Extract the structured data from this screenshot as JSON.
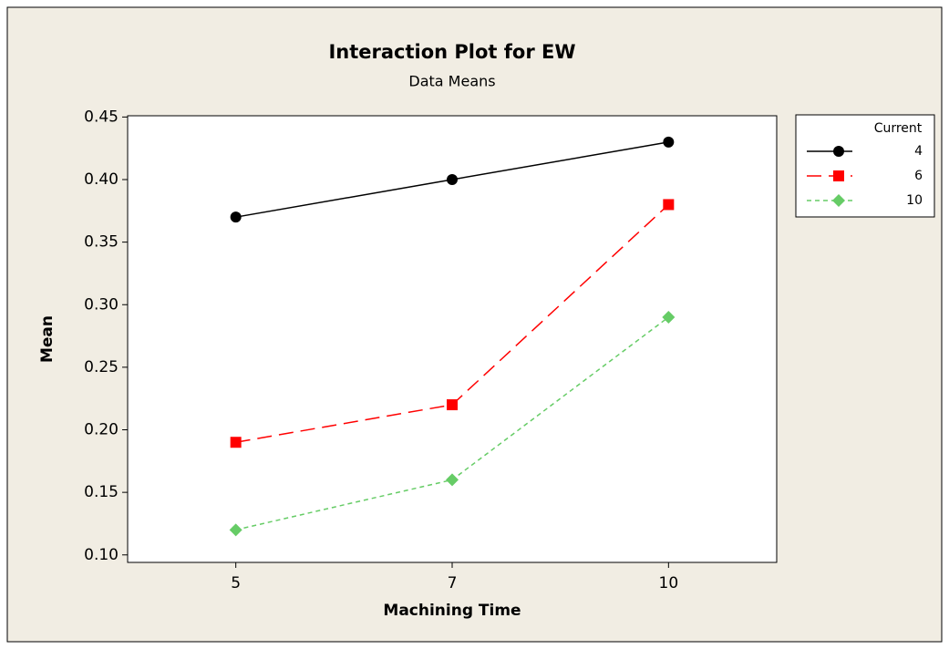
{
  "chart_data": {
    "type": "line",
    "title": "Interaction Plot for EW",
    "subtitle": "Data Means",
    "x_label": "Machining Time",
    "y_label": "Mean",
    "categories": [
      "5",
      "7",
      "10"
    ],
    "ylim": [
      0.094,
      0.451
    ],
    "yticks": [
      {
        "value": 0.1,
        "label": "0.10"
      },
      0.15,
      {
        "value": 0.2,
        "label": "0.20"
      },
      0.25,
      {
        "value": 0.3,
        "label": "0.30"
      },
      0.35,
      {
        "value": 0.4,
        "label": "0.40"
      },
      0.45
    ],
    "legend_title": "Current",
    "legend_position": "right",
    "series": [
      {
        "name": "4",
        "color": "#000000",
        "marker": "circle",
        "dash": "solid",
        "values": [
          0.37,
          0.4,
          0.43
        ]
      },
      {
        "name": "6",
        "color": "#ff0000",
        "marker": "square",
        "dash": "long",
        "values": [
          0.19,
          0.22,
          0.38
        ]
      },
      {
        "name": "10",
        "color": "#66cc66",
        "marker": "diamond",
        "dash": "short",
        "values": [
          0.12,
          0.16,
          0.29
        ]
      }
    ]
  }
}
